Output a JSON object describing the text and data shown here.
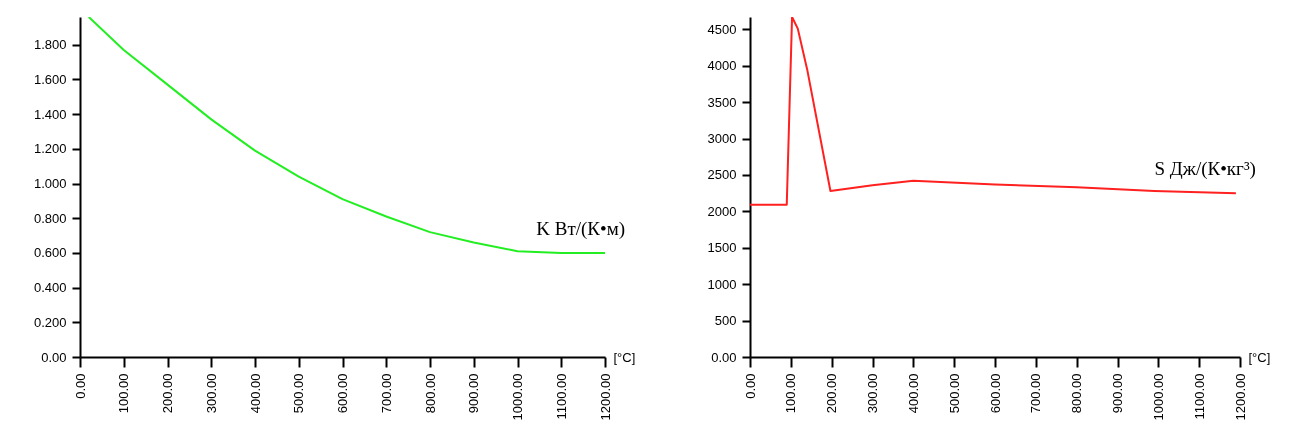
{
  "chart_data": [
    {
      "type": "line",
      "xlabel": "[°C]",
      "x": [
        20,
        100,
        200,
        300,
        400,
        500,
        600,
        700,
        800,
        900,
        1000,
        1100,
        1200
      ],
      "series": [
        {
          "name": "K Вт/(К•м)",
          "color": "#22ee22",
          "values": [
            1.96,
            1.77,
            1.57,
            1.37,
            1.19,
            1.04,
            0.91,
            0.81,
            0.72,
            0.66,
            0.61,
            0.6,
            0.6
          ]
        }
      ],
      "xlim": [
        0,
        1200
      ],
      "ylim": [
        0,
        1.96
      ],
      "xticks": [
        {
          "value": 0,
          "label": "0.00"
        },
        {
          "value": 100,
          "label": "100.00"
        },
        {
          "value": 200,
          "label": "200.00"
        },
        {
          "value": 300,
          "label": "300.00"
        },
        {
          "value": 400,
          "label": "400.00"
        },
        {
          "value": 500,
          "label": "500.00"
        },
        {
          "value": 600,
          "label": "600.00"
        },
        {
          "value": 700,
          "label": "700.00"
        },
        {
          "value": 800,
          "label": "800.00"
        },
        {
          "value": 900,
          "label": "900.00"
        },
        {
          "value": 1000,
          "label": "1000.00"
        },
        {
          "value": 1100,
          "label": "1100.00"
        },
        {
          "value": 1200,
          "label": "1200.00"
        }
      ],
      "yticks": [
        {
          "value": 0,
          "label": "0.00"
        },
        {
          "value": 0.2,
          "label": "0.200"
        },
        {
          "value": 0.4,
          "label": "0.400"
        },
        {
          "value": 0.6,
          "label": "0.600"
        },
        {
          "value": 0.8,
          "label": "0.800"
        },
        {
          "value": 1.0,
          "label": "1.000"
        },
        {
          "value": 1.2,
          "label": "1.200"
        },
        {
          "value": 1.4,
          "label": "1.400"
        },
        {
          "value": 1.6,
          "label": "1.600"
        },
        {
          "value": 1.8,
          "label": "1.800"
        }
      ],
      "grid": false
    },
    {
      "type": "line",
      "xlabel": "[°C]",
      "x": [
        0,
        90,
        103,
        117,
        140,
        197,
        300,
        400,
        600,
        800,
        990,
        1190
      ],
      "series": [
        {
          "name": "S Дж/(К•кг³)",
          "color": "#ff2020",
          "values": [
            2090,
            2090,
            4670,
            4510,
            3950,
            2280,
            2360,
            2420,
            2370,
            2330,
            2280,
            2250
          ]
        }
      ],
      "xlim": [
        0,
        1200
      ],
      "ylim": [
        0,
        4670
      ],
      "xticks": [
        {
          "value": 0,
          "label": "0.00"
        },
        {
          "value": 100,
          "label": "100.00"
        },
        {
          "value": 200,
          "label": "200.00"
        },
        {
          "value": 300,
          "label": "300.00"
        },
        {
          "value": 400,
          "label": "400.00"
        },
        {
          "value": 500,
          "label": "500.00"
        },
        {
          "value": 600,
          "label": "600.00"
        },
        {
          "value": 700,
          "label": "700.00"
        },
        {
          "value": 800,
          "label": "800.00"
        },
        {
          "value": 900,
          "label": "900.00"
        },
        {
          "value": 1000,
          "label": "1000.00"
        },
        {
          "value": 1100,
          "label": "1100.00"
        },
        {
          "value": 1200,
          "label": "1200.00"
        }
      ],
      "yticks": [
        {
          "value": 0,
          "label": "0.00"
        },
        500,
        1000,
        1500,
        2000,
        2500,
        3000,
        3500,
        4000,
        4500
      ],
      "grid": false
    }
  ]
}
